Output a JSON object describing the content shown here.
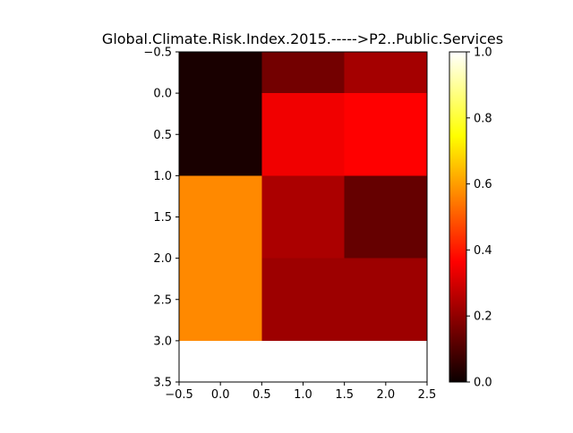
{
  "chart_data": {
    "type": "heatmap",
    "title": "Global.Climate.Risk.Index.2015.----->P2..Public.Services",
    "xlabel": "",
    "ylabel": "",
    "xlim": [
      -0.5,
      2.5
    ],
    "ylim": [
      3.5,
      -0.5
    ],
    "y_inverted": true,
    "x_ticks": [
      -0.5,
      0.0,
      0.5,
      1.0,
      1.5,
      2.0,
      2.5
    ],
    "x_tick_labels": [
      "−0.5",
      "0.0",
      "0.5",
      "1.0",
      "1.5",
      "2.0",
      "2.5"
    ],
    "y_ticks": [
      -0.5,
      0.0,
      0.5,
      1.0,
      1.5,
      2.0,
      2.5,
      3.0,
      3.5
    ],
    "y_tick_labels": [
      "−0.5",
      "0.0",
      "0.5",
      "1.0",
      "1.5",
      "2.0",
      "2.5",
      "3.0",
      "3.5"
    ],
    "cells": [
      {
        "col": 0,
        "row": 0,
        "rowspan": 1.5,
        "value": 0.02
      },
      {
        "col": 0,
        "row": 1.5,
        "rowspan": 2,
        "value": 0.57
      },
      {
        "col": 1,
        "row": 0,
        "rowspan": 0.5,
        "value": 0.15
      },
      {
        "col": 1,
        "row": 0.5,
        "rowspan": 1,
        "value": 0.33
      },
      {
        "col": 1,
        "row": 1.5,
        "rowspan": 1,
        "value": 0.23
      },
      {
        "col": 1,
        "row": 2.5,
        "rowspan": 1,
        "value": 0.21
      },
      {
        "col": 2,
        "row": 0,
        "rowspan": 0.5,
        "value": 0.22
      },
      {
        "col": 2,
        "row": 0.5,
        "rowspan": 1,
        "value": 0.36
      },
      {
        "col": 2,
        "row": 1.5,
        "rowspan": 1,
        "value": 0.13
      },
      {
        "col": 2,
        "row": 2.5,
        "rowspan": 1,
        "value": 0.21
      }
    ],
    "colorbar": {
      "colormap": "hot",
      "vmin": 0.0,
      "vmax": 1.0,
      "ticks": [
        0.0,
        0.2,
        0.4,
        0.6,
        0.8,
        1.0
      ],
      "tick_labels": [
        "0.0",
        "0.2",
        "0.4",
        "0.6",
        "0.8",
        "1.0"
      ]
    },
    "grid": false
  }
}
